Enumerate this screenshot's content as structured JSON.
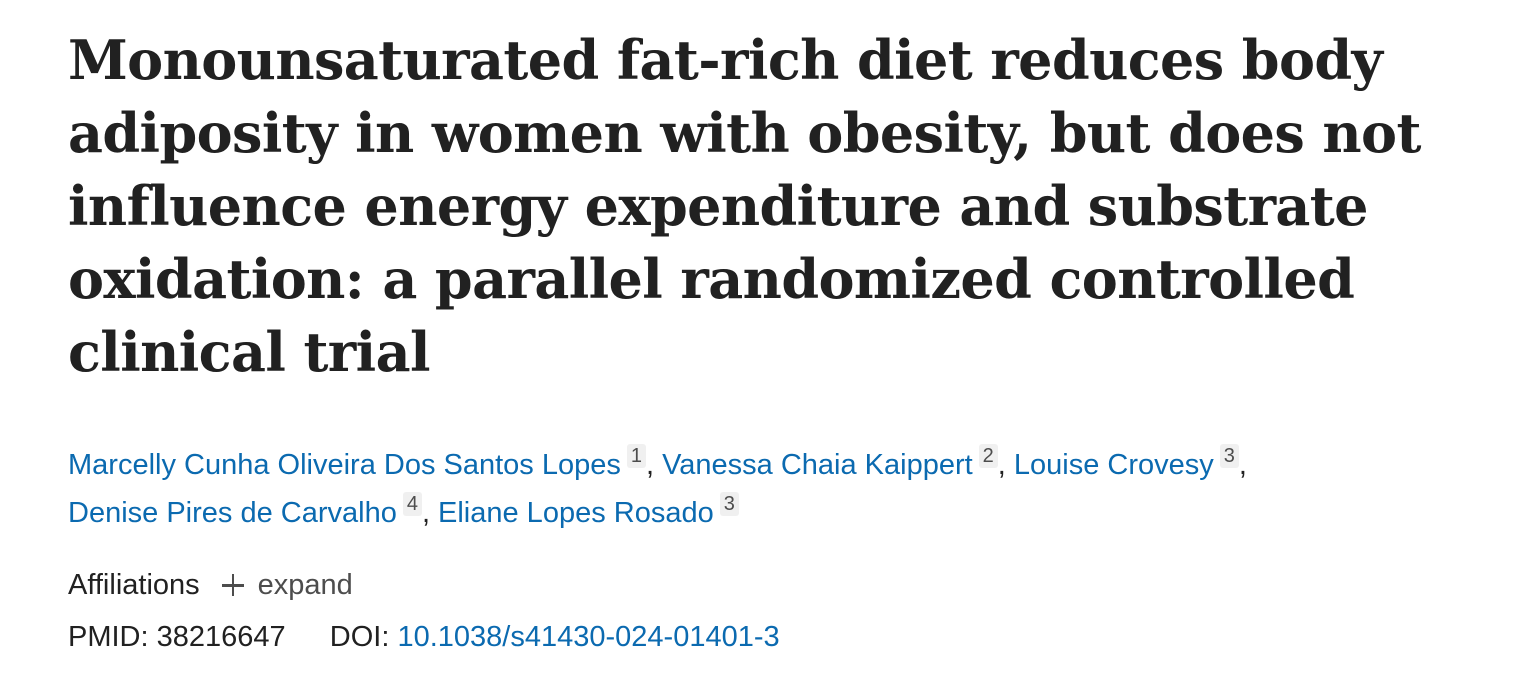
{
  "article": {
    "title": "Monounsaturated fat-rich diet reduces body adiposity in women with obesity, but does not influence energy expenditure and substrate oxidation: a parallel randomized controlled clinical trial"
  },
  "authors": [
    {
      "name": "Marcelly Cunha Oliveira Dos Santos Lopes",
      "affiliation": "1"
    },
    {
      "name": "Vanessa Chaia Kaippert",
      "affiliation": "2"
    },
    {
      "name": "Louise Crovesy",
      "affiliation": "3"
    },
    {
      "name": "Denise Pires de Carvalho",
      "affiliation": "4"
    },
    {
      "name": "Eliane Lopes Rosado",
      "affiliation": "3"
    }
  ],
  "affiliations": {
    "label": "Affiliations",
    "expand_label": "expand",
    "expand_icon": "plus-icon"
  },
  "identifiers": {
    "pmid_label": "PMID:",
    "pmid": "38216647",
    "doi_label": "DOI:",
    "doi": "10.1038/s41430-024-01401-3"
  },
  "colors": {
    "link": "#0b6ab0",
    "text": "#212121",
    "muted": "#4d4d4d",
    "badge_bg": "#f0f0f0"
  }
}
